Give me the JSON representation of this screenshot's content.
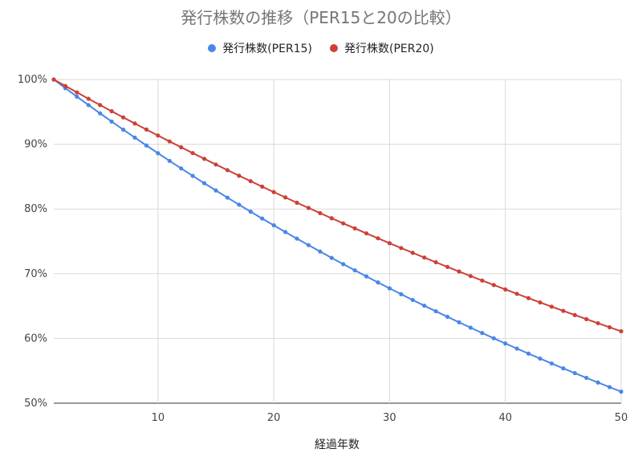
{
  "chart_data": {
    "type": "line",
    "title": "発行株数の推移（PER15と20の比較）",
    "xlabel": "経過年数",
    "ylabel": "",
    "x_start": 1,
    "x_end": 50,
    "xticks": [
      10,
      20,
      30,
      40,
      50
    ],
    "ylim": [
      0.5,
      1.0
    ],
    "yticks": [
      0.5,
      0.6,
      0.7,
      0.8,
      0.9,
      1.0
    ],
    "ytick_labels": [
      "50%",
      "60%",
      "70%",
      "80%",
      "90%",
      "100%"
    ],
    "grid": true,
    "legend_position": "top",
    "series": [
      {
        "name": "発行株数(PER15)",
        "color": "#4a86e8",
        "decay": 0.98666
      },
      {
        "name": "発行株数(PER20)",
        "color": "#cc4137",
        "decay": 0.99
      }
    ]
  }
}
